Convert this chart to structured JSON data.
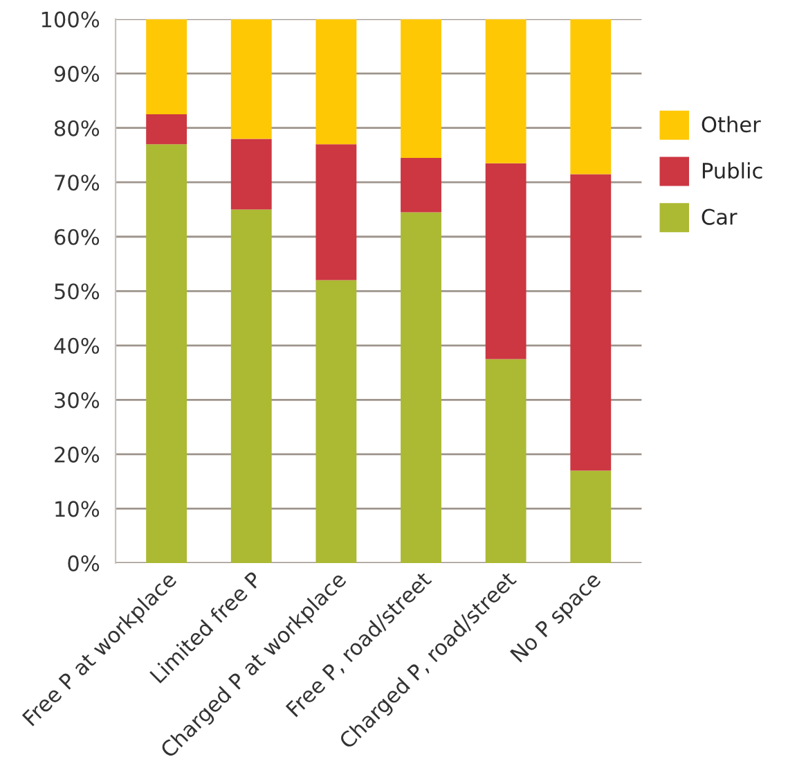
{
  "chart_data": {
    "type": "bar",
    "stacked": true,
    "categories": [
      "Free P at workplace",
      "Limited free P",
      "Charged P at workplace",
      "Free P, road/street",
      "Charged P, road/street",
      "No P space"
    ],
    "series": [
      {
        "name": "Car",
        "color": "#acb933",
        "values": [
          77,
          65,
          52,
          64.5,
          37.5,
          17
        ]
      },
      {
        "name": "Public",
        "color": "#cc3742",
        "values": [
          5.5,
          13,
          25,
          10,
          36,
          54.5
        ]
      },
      {
        "name": "Other",
        "color": "#fec805",
        "values": [
          17.5,
          22,
          23,
          25.5,
          26.5,
          28.5
        ]
      }
    ],
    "ylim": [
      0,
      100
    ],
    "yticks": [
      {
        "value": 0,
        "label": "0%"
      },
      {
        "value": 10,
        "label": "10%"
      },
      {
        "value": 20,
        "label": "20%"
      },
      {
        "value": 30,
        "label": "30%"
      },
      {
        "value": 40,
        "label": "40%"
      },
      {
        "value": 50,
        "label": "50%"
      },
      {
        "value": 60,
        "label": "60%"
      },
      {
        "value": 70,
        "label": "70%"
      },
      {
        "value": 80,
        "label": "80%"
      },
      {
        "value": 90,
        "label": "90%"
      },
      {
        "value": 100,
        "label": "100%"
      }
    ],
    "grid": "y",
    "legend": "right"
  }
}
